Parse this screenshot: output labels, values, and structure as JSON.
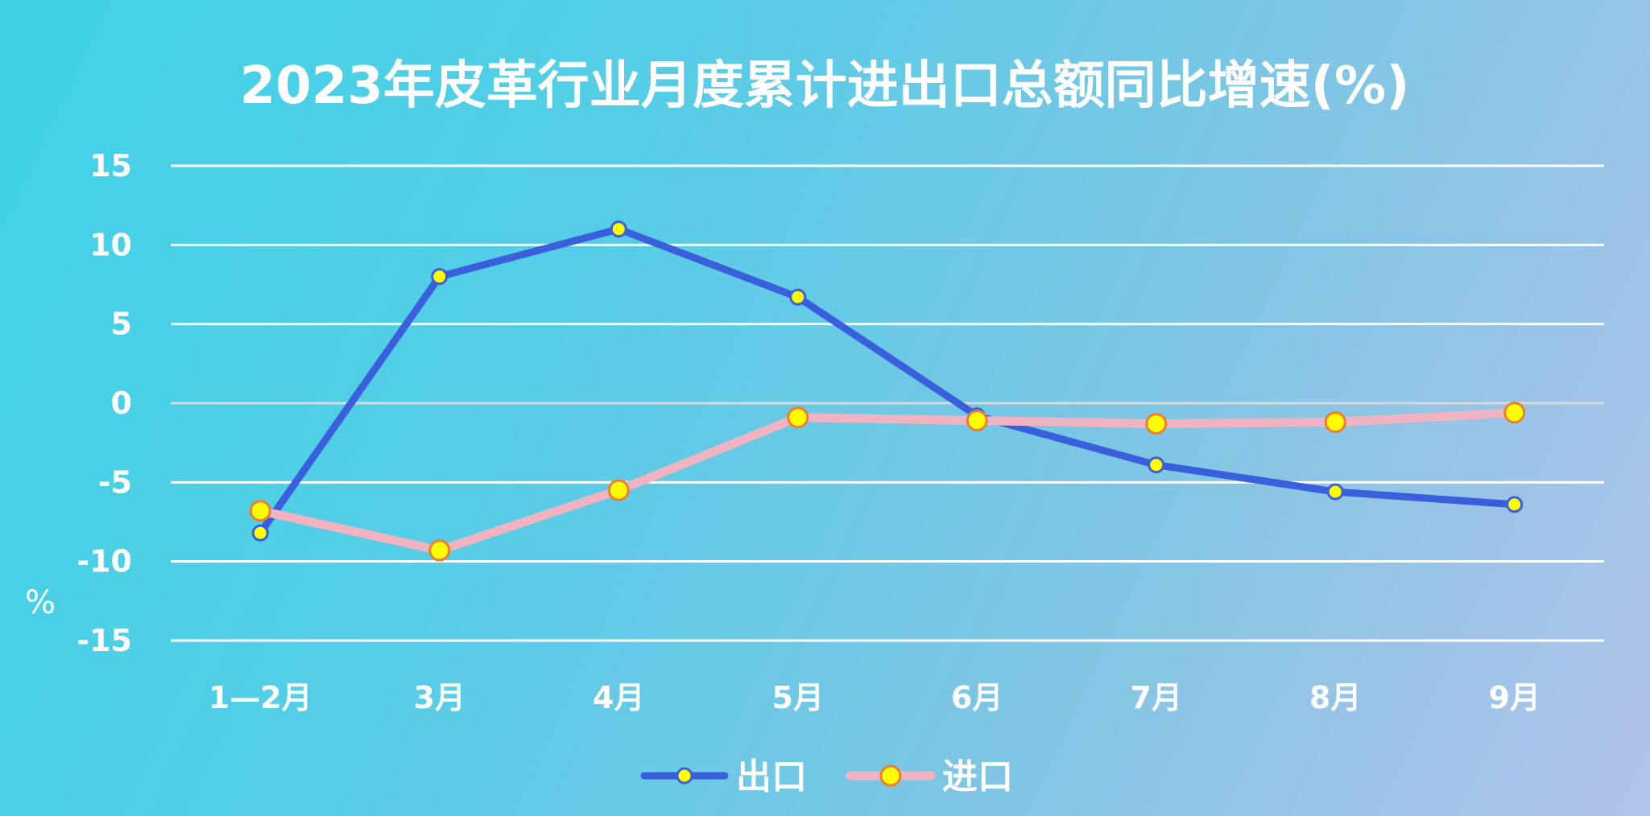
{
  "chart_data": {
    "type": "line",
    "title": "2023年皮革行业月度累计进出口总额同比增速(%)",
    "ylabel": "%",
    "xlabel": "",
    "categories": [
      "1—2月",
      "3月",
      "4月",
      "5月",
      "6月",
      "7月",
      "8月",
      "9月"
    ],
    "ylim": [
      -15,
      15
    ],
    "yticks": [
      15,
      10,
      5,
      0,
      -5,
      -10,
      -15
    ],
    "grid": true,
    "legend_position": "bottom",
    "series": [
      {
        "name": "出口",
        "values": [
          -8.2,
          8.0,
          11.0,
          6.7,
          -0.8,
          -3.9,
          -5.6,
          -6.4
        ],
        "color": "#3a5fdc",
        "marker_fill": "#ffff00",
        "marker_stroke": "#3a5fdc"
      },
      {
        "name": "进口",
        "values": [
          -6.8,
          -9.3,
          -5.5,
          -0.9,
          -1.1,
          -1.3,
          -1.2,
          -0.6
        ],
        "color": "#efb3c1",
        "marker_fill": "#ffff00",
        "marker_stroke": "#ee7d31"
      }
    ]
  }
}
